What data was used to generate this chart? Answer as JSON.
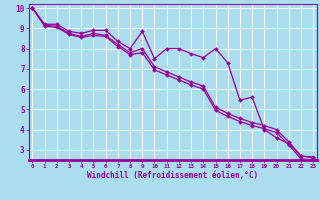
{
  "xlabel": "Windchill (Refroidissement éolien,°C)",
  "bg_color": "#aaddee",
  "line_color": "#990099",
  "grid_color": "#ffffff",
  "x_data": [
    0,
    1,
    2,
    3,
    4,
    5,
    6,
    7,
    8,
    9,
    10,
    11,
    12,
    13,
    14,
    15,
    16,
    17,
    18,
    19,
    20,
    21,
    22,
    23
  ],
  "y_line1": [
    10.0,
    9.2,
    9.2,
    8.85,
    8.75,
    8.9,
    8.9,
    8.35,
    8.0,
    8.85,
    7.5,
    8.0,
    8.0,
    7.75,
    7.55,
    8.0,
    7.3,
    5.45,
    5.6,
    4.0,
    3.6,
    3.3,
    2.7,
    2.65
  ],
  "y_line2": [
    10.0,
    9.15,
    9.1,
    8.75,
    8.6,
    8.75,
    8.65,
    8.2,
    7.8,
    8.0,
    7.1,
    6.85,
    6.6,
    6.35,
    6.15,
    5.1,
    4.8,
    4.55,
    4.35,
    4.2,
    4.0,
    3.4,
    2.7,
    2.6
  ],
  "y_line3": [
    10.0,
    9.1,
    9.05,
    8.7,
    8.55,
    8.65,
    8.6,
    8.1,
    7.7,
    7.8,
    6.95,
    6.7,
    6.45,
    6.2,
    6.0,
    4.95,
    4.65,
    4.4,
    4.2,
    4.05,
    3.85,
    3.25,
    2.55,
    2.5
  ],
  "ylim_min": 2.5,
  "ylim_max": 10.2,
  "xlim_min": -0.3,
  "xlim_max": 23.3,
  "yticks": [
    3,
    4,
    5,
    6,
    7,
    8,
    9,
    10
  ],
  "xticks": [
    0,
    1,
    2,
    3,
    4,
    5,
    6,
    7,
    8,
    9,
    10,
    11,
    12,
    13,
    14,
    15,
    16,
    17,
    18,
    19,
    20,
    21,
    22,
    23
  ]
}
